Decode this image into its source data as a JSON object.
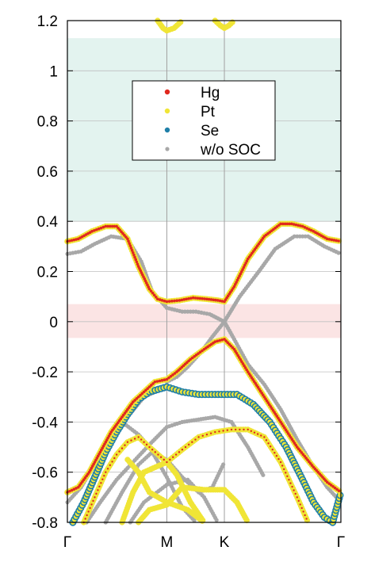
{
  "chart_data": {
    "type": "scatter",
    "title": "",
    "xlabel": "",
    "ylabel": "",
    "ylim": [
      -0.8,
      1.2
    ],
    "y_ticks": [
      "-0.8",
      "-0.6",
      "-0.4",
      "-0.2",
      "0",
      "0.2",
      "0.4",
      "0.6",
      "0.8",
      "1",
      "1.2"
    ],
    "x_ticks": [
      {
        "label": "Γ",
        "pos": 0.0
      },
      {
        "label": "M",
        "pos": 0.3636
      },
      {
        "label": "K",
        "pos": 0.574
      },
      {
        "label": "Γ",
        "pos": 1.0
      }
    ],
    "grid": true,
    "shaded_regions": [
      {
        "ymin": 0.4,
        "ymax": 1.13,
        "color": "#e3f3ef"
      },
      {
        "ymin": -0.065,
        "ymax": 0.07,
        "color": "#fbe4e4"
      }
    ],
    "legend_position": "upper-center",
    "series": [
      {
        "name": "Hg",
        "color": "#e0281e"
      },
      {
        "name": "Pt",
        "color": "#f0e536"
      },
      {
        "name": "Se",
        "color": "#1f7fa8"
      },
      {
        "name": "w/o SOC",
        "color": "#a8a8a8"
      }
    ],
    "bands": {
      "nosoc": [
        {
          "x": [
            0,
            0.05,
            0.1,
            0.16,
            0.22,
            0.27,
            0.31,
            0.3636,
            0.42,
            0.47,
            0.52,
            0.574
          ],
          "y": [
            0.27,
            0.28,
            0.31,
            0.34,
            0.33,
            0.24,
            0.12,
            0.055,
            0.04,
            0.04,
            0.03,
            0.0
          ]
        },
        {
          "x": [
            0.574,
            0.63,
            0.7,
            0.76,
            0.83,
            0.88,
            0.94,
            1.0
          ],
          "y": [
            0.0,
            0.1,
            0.2,
            0.29,
            0.34,
            0.34,
            0.3,
            0.27
          ]
        },
        {
          "x": [
            0.3636,
            0.4,
            0.44,
            0.49,
            0.53,
            0.574
          ],
          "y": [
            -0.24,
            -0.22,
            -0.18,
            -0.12,
            -0.06,
            0.0
          ]
        },
        {
          "x": [
            0.574,
            0.61,
            0.66,
            0.72,
            0.78,
            0.84,
            0.9,
            0.95,
            1.0
          ],
          "y": [
            0.0,
            -0.07,
            -0.17,
            -0.25,
            -0.35,
            -0.47,
            -0.58,
            -0.66,
            -0.72
          ]
        },
        {
          "x": [
            0,
            0.05,
            0.1,
            0.16,
            0.22,
            0.28,
            0.3636
          ],
          "y": [
            -0.72,
            -0.66,
            -0.57,
            -0.47,
            -0.38,
            -0.3,
            -0.26
          ]
        },
        {
          "x": [
            0.07,
            0.12,
            0.18,
            0.24,
            0.3,
            0.3636,
            0.42,
            0.48,
            0.54,
            0.6,
            0.66,
            0.72
          ],
          "y": [
            -0.8,
            -0.72,
            -0.63,
            -0.56,
            -0.49,
            -0.42,
            -0.4,
            -0.39,
            -0.38,
            -0.4,
            -0.5,
            -0.62
          ]
        },
        {
          "x": [
            0.14,
            0.2,
            0.26,
            0.31,
            0.3636,
            0.42,
            0.48,
            0.53,
            0.574
          ],
          "y": [
            -0.8,
            -0.68,
            -0.57,
            -0.52,
            -0.55,
            -0.62,
            -0.68,
            -0.66,
            -0.56
          ]
        },
        {
          "x": [
            0.2,
            0.26,
            0.3,
            0.3636,
            0.42,
            0.47
          ],
          "y": [
            -0.4,
            -0.45,
            -0.5,
            -0.62,
            -0.74,
            -0.8
          ]
        },
        {
          "x": [
            0.23,
            0.28,
            0.3636,
            0.44,
            0.5,
            0.55
          ],
          "y": [
            -0.8,
            -0.72,
            -0.65,
            -0.63,
            -0.7,
            -0.8
          ]
        }
      ],
      "soc_main": [
        {
          "x": [
            0,
            0.04,
            0.09,
            0.14,
            0.18,
            0.22,
            0.26,
            0.3,
            0.33,
            0.3636,
            0.41,
            0.46,
            0.51,
            0.55,
            0.574,
            0.61,
            0.66,
            0.72,
            0.78,
            0.82,
            0.86,
            0.9,
            0.95,
            1.0
          ],
          "y": [
            0.32,
            0.33,
            0.36,
            0.38,
            0.38,
            0.33,
            0.22,
            0.13,
            0.09,
            0.08,
            0.085,
            0.095,
            0.09,
            0.085,
            0.08,
            0.14,
            0.25,
            0.34,
            0.39,
            0.39,
            0.38,
            0.36,
            0.33,
            0.32
          ]
        },
        {
          "x": [
            0.3636,
            0.4,
            0.45,
            0.5,
            0.54,
            0.574,
            0.61,
            0.66,
            0.72,
            0.78,
            0.84,
            0.9,
            0.95,
            1.0
          ],
          "y": [
            -0.23,
            -0.2,
            -0.15,
            -0.11,
            -0.08,
            -0.07,
            -0.11,
            -0.2,
            -0.3,
            -0.4,
            -0.5,
            -0.58,
            -0.64,
            -0.68
          ]
        },
        {
          "x": [
            0,
            0.04,
            0.08,
            0.12,
            0.16,
            0.2,
            0.24,
            0.28,
            0.32,
            0.3636
          ],
          "y": [
            -0.68,
            -0.66,
            -0.6,
            -0.52,
            -0.44,
            -0.38,
            -0.32,
            -0.28,
            -0.24,
            -0.23
          ]
        }
      ],
      "soc_se": [
        {
          "x": [
            0.02,
            0.06,
            0.1,
            0.14,
            0.18,
            0.22,
            0.26,
            0.3,
            0.3636,
            0.42,
            0.48,
            0.54,
            0.574,
            0.62,
            0.68,
            0.74,
            0.8,
            0.86,
            0.9,
            0.94,
            0.97,
            1.0
          ],
          "y": [
            -0.8,
            -0.72,
            -0.62,
            -0.52,
            -0.44,
            -0.37,
            -0.31,
            -0.28,
            -0.26,
            -0.28,
            -0.29,
            -0.29,
            -0.29,
            -0.29,
            -0.33,
            -0.4,
            -0.5,
            -0.63,
            -0.72,
            -0.78,
            -0.8,
            -0.68
          ]
        }
      ],
      "soc_pt": [
        {
          "x": [
            0.06,
            0.1,
            0.14,
            0.18,
            0.22,
            0.26,
            0.3,
            0.3636,
            0.42,
            0.48,
            0.54,
            0.6,
            0.66,
            0.72,
            0.78,
            0.84,
            0.88
          ],
          "y": [
            -0.8,
            -0.7,
            -0.6,
            -0.53,
            -0.48,
            -0.46,
            -0.5,
            -0.56,
            -0.51,
            -0.46,
            -0.44,
            -0.43,
            -0.43,
            -0.46,
            -0.56,
            -0.7,
            -0.8
          ]
        },
        {
          "x": [
            0.2,
            0.24,
            0.28,
            0.3636,
            0.4,
            0.45,
            0.5
          ],
          "y": [
            -0.8,
            -0.68,
            -0.6,
            -0.56,
            -0.61,
            -0.72,
            -0.8
          ]
        },
        {
          "x": [
            0.26,
            0.3,
            0.3636,
            0.42,
            0.5,
            0.574,
            0.62,
            0.66
          ],
          "y": [
            -0.8,
            -0.75,
            -0.73,
            -0.66,
            -0.67,
            -0.67,
            -0.72,
            -0.8
          ]
        },
        {
          "x": [
            0.22,
            0.26,
            0.3,
            0.3636,
            0.44,
            0.5
          ],
          "y": [
            -0.55,
            -0.6,
            -0.68,
            -0.72,
            -0.75,
            -0.8
          ]
        },
        {
          "x": [
            0.33,
            0.35,
            0.3636,
            0.39,
            0.42
          ],
          "y": [
            1.2,
            1.17,
            1.16,
            1.17,
            1.2
          ]
        },
        {
          "x": [
            0.54,
            0.56,
            0.574,
            0.59,
            0.61
          ],
          "y": [
            1.2,
            1.18,
            1.17,
            1.18,
            1.2
          ]
        }
      ]
    }
  }
}
